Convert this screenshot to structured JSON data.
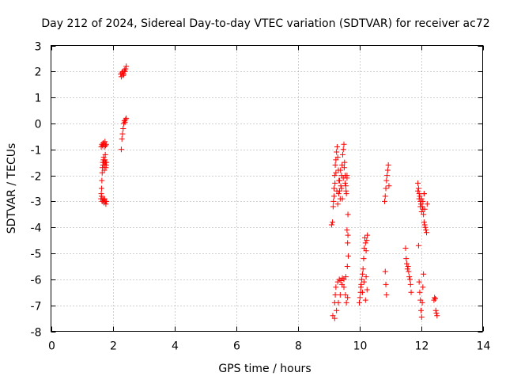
{
  "chart_data": {
    "type": "scatter",
    "title": "Day 212 of 2024, Sidereal Day-to-day VTEC variation (SDTVAR) for receiver ac72",
    "xlabel": "GPS time / hours",
    "ylabel": "SDTVAR / TECUs",
    "xlim": [
      0,
      14
    ],
    "ylim": [
      -8,
      3
    ],
    "xticks": [
      0,
      2,
      4,
      6,
      8,
      10,
      12,
      14
    ],
    "yticks": [
      -8,
      -7,
      -6,
      -5,
      -4,
      -3,
      -2,
      -1,
      0,
      1,
      2,
      3
    ],
    "grid": true,
    "marker": "+",
    "color": "#ff0000",
    "series": [
      {
        "name": "SDTVAR",
        "x": [
          1.62,
          1.63,
          1.64,
          1.65,
          1.66,
          1.67,
          1.68,
          1.69,
          1.7,
          1.71,
          1.72,
          1.73,
          1.74,
          1.75,
          1.76,
          1.77,
          1.78,
          1.79,
          1.8,
          1.63,
          1.65,
          1.67,
          1.69,
          1.71,
          1.73,
          1.75,
          1.77,
          1.79,
          1.64,
          1.66,
          1.68,
          1.7,
          1.72,
          1.74,
          1.76,
          1.78,
          1.8,
          2.28,
          2.3,
          2.32,
          2.34,
          2.36,
          2.38,
          2.4,
          2.42,
          2.44,
          2.26,
          2.28,
          2.3,
          2.32,
          2.34,
          2.36,
          2.38,
          2.4,
          2.42,
          2.44,
          9.1,
          9.13,
          9.16,
          9.18,
          9.2,
          9.22,
          9.24,
          9.26,
          9.28,
          9.3,
          9.32,
          9.34,
          9.36,
          9.38,
          9.4,
          9.42,
          9.44,
          9.46,
          9.48,
          9.5,
          9.52,
          9.54,
          9.56,
          9.58,
          9.6,
          9.15,
          9.18,
          9.21,
          9.24,
          9.27,
          9.3,
          9.33,
          9.36,
          9.39,
          9.42,
          9.45,
          9.48,
          9.51,
          9.54,
          9.57,
          9.6,
          9.63,
          9.14,
          9.2,
          9.26,
          9.32,
          9.38,
          9.44,
          9.5,
          9.56,
          9.2,
          9.22,
          9.24,
          9.3,
          9.35,
          9.4,
          9.45,
          9.5,
          9.55,
          9.58,
          9.62,
          9.6,
          9.62,
          9.64,
          9.63,
          9.61,
          10.0,
          10.02,
          10.04,
          10.06,
          10.08,
          10.1,
          10.12,
          10.14,
          10.16,
          10.18,
          10.2,
          10.22,
          10.24,
          10.26,
          10.05,
          10.1,
          10.15,
          10.2,
          10.22,
          10.25,
          10.82,
          10.84,
          10.86,
          10.88,
          10.9,
          10.92,
          10.94,
          10.96,
          10.84,
          10.86,
          10.88,
          11.5,
          11.52,
          11.54,
          11.56,
          11.58,
          11.6,
          11.62,
          11.64,
          11.66,
          11.68,
          11.9,
          11.92,
          11.94,
          11.96,
          11.98,
          12.0,
          12.02,
          12.04,
          12.06,
          12.08,
          12.1,
          12.12,
          12.14,
          12.16,
          12.18,
          12.2,
          11.92,
          11.94,
          11.96,
          11.98,
          12.0,
          12.02,
          12.04,
          12.06,
          12.08,
          12.1,
          12.12,
          11.9,
          11.94,
          11.98,
          12.02,
          12.06,
          12.1,
          12.42,
          12.44,
          12.46,
          12.48,
          12.5,
          12.52
        ],
        "y": [
          -2.9,
          -2.7,
          -2.5,
          -2.2,
          -1.9,
          -1.7,
          -1.5,
          -1.6,
          -1.4,
          -1.3,
          -1.5,
          -1.8,
          -1.6,
          -1.4,
          -1.2,
          -1.5,
          -1.7,
          -1.6,
          -1.5,
          -0.9,
          -0.8,
          -0.85,
          -0.75,
          -0.8,
          -0.9,
          -0.7,
          -0.85,
          -0.8,
          -2.8,
          -3.0,
          -2.9,
          -2.95,
          -3.05,
          -2.9,
          -3.0,
          -3.1,
          -3.0,
          -1.0,
          -0.6,
          -0.4,
          -0.2,
          0.0,
          0.1,
          0.05,
          0.15,
          0.2,
          1.9,
          1.8,
          1.95,
          2.0,
          1.85,
          1.9,
          2.05,
          2.0,
          2.1,
          2.2,
          -3.9,
          -3.8,
          -3.0,
          -2.5,
          -2.0,
          -1.6,
          -1.4,
          -1.1,
          -0.9,
          -1.3,
          -1.8,
          -2.2,
          -2.6,
          -2.9,
          -2.4,
          -2.0,
          -1.6,
          -1.2,
          -1.0,
          -0.8,
          -1.5,
          -2.0,
          -2.4,
          -2.7,
          -2.1,
          -3.2,
          -2.8,
          -2.3,
          -1.9,
          -2.6,
          -3.1,
          -2.7,
          -2.2,
          -1.8,
          -2.5,
          -2.9,
          -2.1,
          -1.7,
          -2.3,
          -2.6,
          -2.0,
          -3.5,
          -7.4,
          -7.5,
          -7.2,
          -6.9,
          -6.6,
          -6.2,
          -6.0,
          -5.9,
          -6.9,
          -6.6,
          -6.3,
          -6.1,
          -6.0,
          -6.05,
          -5.95,
          -6.3,
          -6.6,
          -6.9,
          -6.7,
          -4.1,
          -4.6,
          -5.1,
          -4.3,
          -5.5,
          -6.9,
          -6.7,
          -6.5,
          -6.2,
          -6.0,
          -5.8,
          -5.6,
          -5.2,
          -4.8,
          -4.4,
          -4.6,
          -4.9,
          -4.5,
          -4.3,
          -6.3,
          -6.5,
          -6.1,
          -6.8,
          -5.9,
          -6.4,
          -3.0,
          -2.8,
          -2.5,
          -2.2,
          -2.0,
          -1.8,
          -1.6,
          -2.4,
          -5.7,
          -6.2,
          -6.6,
          -4.8,
          -5.2,
          -5.4,
          -5.6,
          -5.5,
          -5.7,
          -5.9,
          -6.0,
          -6.2,
          -6.5,
          -2.3,
          -2.5,
          -2.7,
          -2.8,
          -3.0,
          -3.1,
          -2.9,
          -3.2,
          -3.3,
          -3.5,
          -3.8,
          -3.9,
          -4.0,
          -4.1,
          -4.2,
          -3.1,
          -4.7,
          -6.1,
          -6.5,
          -6.8,
          -7.2,
          -7.45,
          -6.9,
          -6.3,
          -5.8,
          -2.7,
          -3.3,
          -2.6,
          -2.9,
          -3.2,
          -3.4,
          -3.0,
          -2.7,
          -6.8,
          -6.7,
          -6.75,
          -7.2,
          -7.3,
          -7.4
        ]
      }
    ]
  }
}
